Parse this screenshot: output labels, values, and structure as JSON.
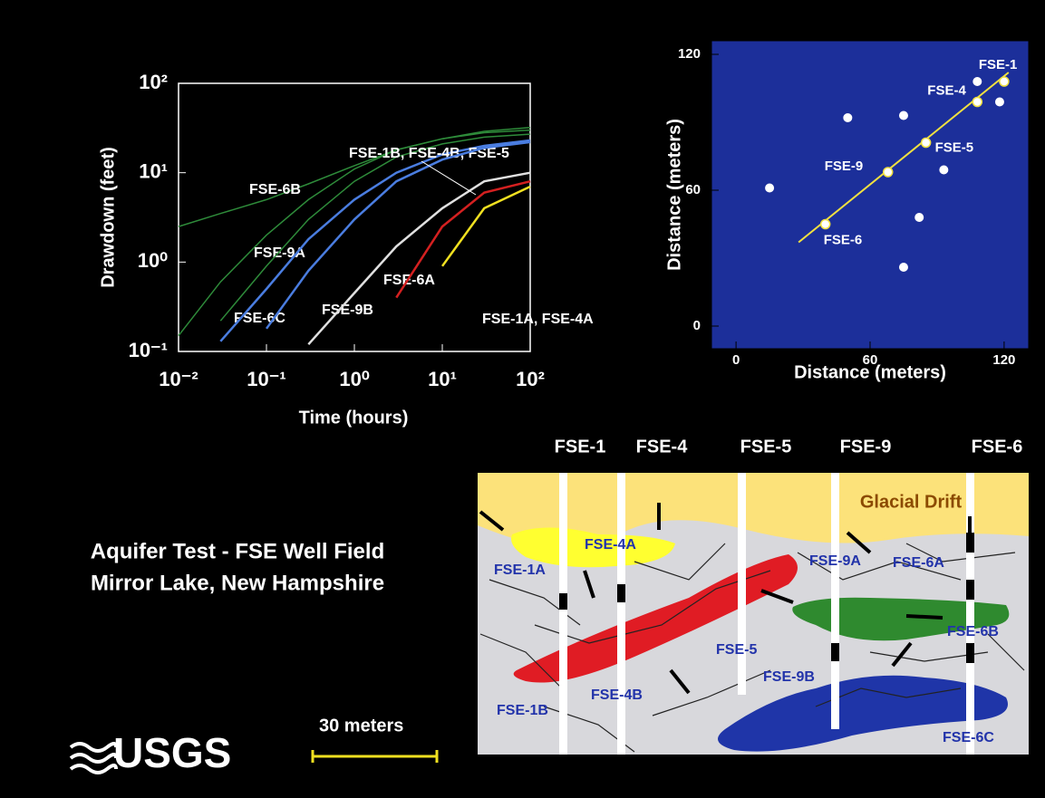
{
  "chart_data": [
    {
      "type": "line",
      "x_label": "Time (hours)",
      "y_label": "Drawdown (feet)",
      "log_x": true,
      "log_y": true,
      "x": [
        0.01,
        0.03,
        0.1,
        0.3,
        1,
        3,
        10,
        30,
        100
      ],
      "xlim": [
        0.01,
        100
      ],
      "ylim": [
        0.1,
        100
      ],
      "xticks": [
        {
          "value": 0.01,
          "label": "10⁻²"
        },
        {
          "value": 0.1,
          "label": "10⁻¹"
        },
        {
          "value": 1,
          "label": "10⁰"
        },
        {
          "value": 10,
          "label": "10¹"
        },
        {
          "value": 100,
          "label": "10²"
        }
      ],
      "yticks": [
        {
          "value": 0.1,
          "label": "10⁻¹"
        },
        {
          "value": 1,
          "label": "10⁰"
        },
        {
          "value": 10,
          "label": "10¹"
        },
        {
          "value": 100,
          "label": "10²"
        }
      ],
      "series": [
        {
          "name": "FSE-6B",
          "color": "#2e8b3a",
          "values": [
            2.5,
            3.5,
            5,
            7.5,
            12,
            18,
            24,
            29,
            32
          ]
        },
        {
          "name": "FSE-9A",
          "color": "#2e8b3a",
          "values": [
            0.15,
            0.6,
            2,
            5,
            11,
            18,
            24,
            28,
            30
          ]
        },
        {
          "name": "FSE-6C",
          "color": "#2e8b3a",
          "values": [
            null,
            0.22,
            0.9,
            3,
            8,
            15,
            21,
            25,
            27
          ]
        },
        {
          "name": "FSE-1B, FSE-4B, FSE-5",
          "color": "#4a7de0",
          "values": [
            null,
            0.13,
            0.5,
            1.8,
            5,
            10,
            16,
            20,
            23
          ]
        },
        {
          "name": "FSE-9B",
          "color": "#4a7de0",
          "values": [
            null,
            null,
            0.18,
            0.8,
            3,
            8,
            14,
            19,
            22
          ]
        },
        {
          "name": "FSE-6A",
          "color": "#e0e0e0",
          "values": [
            null,
            null,
            null,
            0.12,
            0.45,
            1.5,
            4,
            8,
            10
          ]
        },
        {
          "name": "FSE-1A, FSE-4A",
          "color": "#d42020",
          "values": [
            null,
            null,
            null,
            null,
            null,
            0.4,
            2.5,
            6,
            8
          ]
        },
        {
          "color": "#f0e020",
          "values": [
            null,
            null,
            null,
            null,
            null,
            null,
            0.9,
            4,
            7
          ]
        }
      ]
    },
    {
      "type": "scatter",
      "x_label": "Distance (meters)",
      "y_label": "Distance (meters)",
      "background": "#1c2f9a",
      "xlim": [
        -11,
        131
      ],
      "ylim": [
        -10,
        126
      ],
      "xticks": [
        0,
        60,
        120
      ],
      "yticks": [
        0,
        60,
        120
      ],
      "series": [
        {
          "color": "#ffffff",
          "x": [
            120,
            108,
            85,
            68,
            40
          ],
          "values": [
            108,
            99,
            81,
            68,
            45
          ],
          "point_labels": [
            "FSE-1",
            "FSE-4",
            "FSE-5",
            "FSE-9",
            "FSE-6"
          ]
        },
        {
          "color": "#ffffff",
          "x": [
            15,
            50,
            75,
            82,
            75,
            93,
            108,
            118
          ],
          "values": [
            61,
            92,
            93,
            48,
            26,
            69,
            108,
            99
          ]
        }
      ],
      "fit_line": {
        "color": "#f0e040",
        "x": [
          28,
          122
        ],
        "values": [
          37,
          112
        ]
      }
    }
  ],
  "title": [
    "Aquifer Test - FSE Well Field",
    "Mirror Lake, New Hampshire"
  ],
  "scale_label": "30 meters",
  "logo": "USGS",
  "diagram": {
    "wells": [
      "FSE-1",
      "FSE-4",
      "FSE-5",
      "FSE-9",
      "FSE-6"
    ],
    "layer": "Glacial Drift",
    "zones": [
      "FSE-1A",
      "FSE-4A",
      "FSE-9A",
      "FSE-6A",
      "FSE-5",
      "FSE-6B",
      "FSE-9B",
      "FSE-1B",
      "FSE-4B",
      "FSE-6C"
    ]
  }
}
